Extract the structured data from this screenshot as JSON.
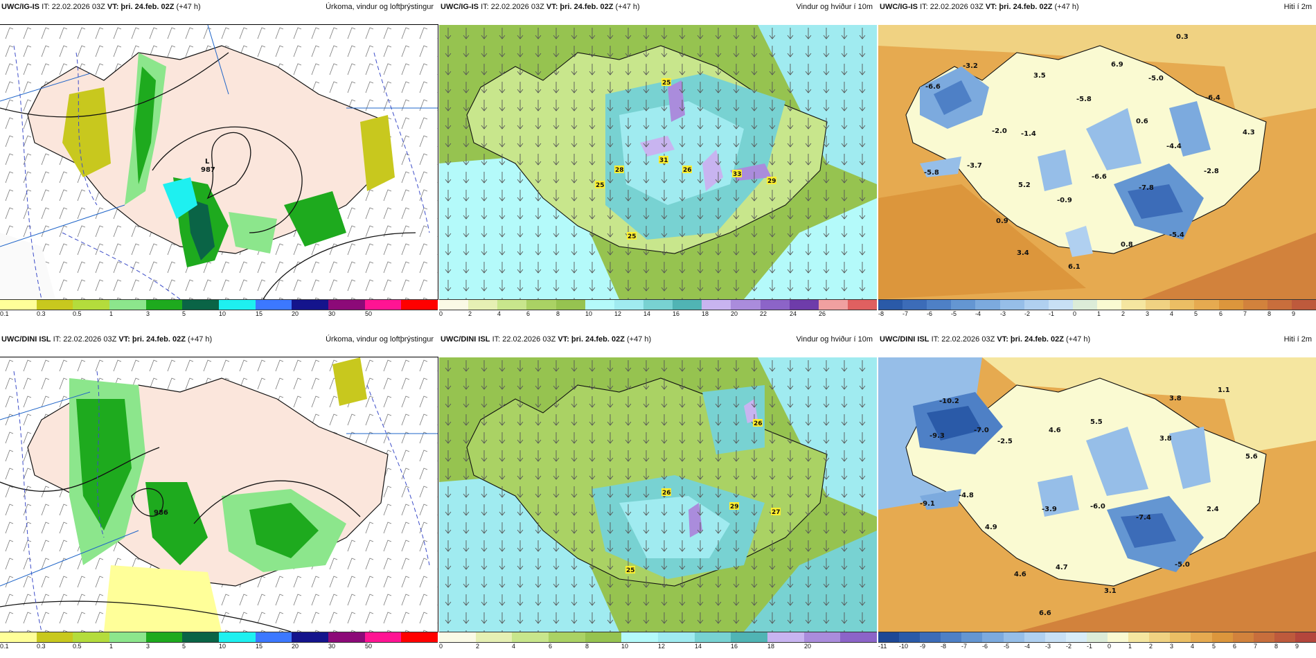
{
  "panels": {
    "p1": {
      "model": "UWC/IG-IS",
      "it": "IT: 22.02.2026 03Z",
      "vt": "VT: þri. 24.feb. 02Z",
      "lead": "(+47 h)",
      "title": "Úrkoma, vindur og loftþrýstingur",
      "low_letter": "L",
      "low_value": "987",
      "scale_ticks": [
        "0.1",
        "0.3",
        "0.5",
        "1",
        "3",
        "5",
        "10",
        "15",
        "20",
        "30",
        "50"
      ],
      "scale_colors": [
        "#ffff99",
        "#c8c81e",
        "#b4dc3c",
        "#8ce68c",
        "#1eaa1e",
        "#0a6446",
        "#1ef0f0",
        "#3c78ff",
        "#14148c",
        "#8c0a78",
        "#ff1493",
        "#ff0000"
      ]
    },
    "p2": {
      "model": "UWC/IG-IS",
      "it": "IT: 22.02.2026 03Z",
      "vt": "VT: þri. 24.feb. 02Z",
      "lead": "(+47 h)",
      "title": "Vindur og hviður í 10m",
      "gusts": [
        "25",
        "28",
        "31",
        "26",
        "33",
        "29",
        "25",
        "25"
      ],
      "scale_ticks": [
        "0",
        "2",
        "4",
        "6",
        "8",
        "10",
        "12",
        "14",
        "16",
        "18",
        "20",
        "22",
        "24",
        "26"
      ],
      "scale_colors": [
        "#fafae6",
        "#e6f0b4",
        "#c8e68c",
        "#aad264",
        "#96c350",
        "#b4fafa",
        "#a0ebf0",
        "#78d2d2",
        "#50b4b4",
        "#c8b4f0",
        "#aa8cdc",
        "#8c64c8",
        "#6e3caa",
        "#f0a0a0",
        "#e06060"
      ]
    },
    "p3": {
      "model": "UWC/IG-IS",
      "it": "IT: 22.02.2026 03Z",
      "vt": "VT: þri. 24.feb. 02Z",
      "lead": "(+47 h)",
      "title": "Hiti í 2m",
      "temps": [
        "-3.2",
        "0.3",
        "-6.6",
        "3.5",
        "6.9",
        "-5.0",
        "-5.8",
        "-6.4",
        "-2.0",
        "-1.4",
        "0.6",
        "4.3",
        "-4.4",
        "-3.7",
        "-5.8",
        "5.2",
        "-6.6",
        "-2.8",
        "-0.9",
        "-7.8",
        "0.9",
        "0.8",
        "-5.4",
        "3.4",
        "6.1"
      ],
      "scale_ticks": [
        "-8",
        "-7",
        "-6",
        "-5",
        "-4",
        "-3",
        "-2",
        "-1",
        "0",
        "1",
        "2",
        "3",
        "4",
        "5",
        "6",
        "7",
        "8",
        "9"
      ],
      "scale_colors": [
        "#2a5aa8",
        "#3c6cb8",
        "#4e80c6",
        "#6496d2",
        "#7caade",
        "#96bee8",
        "#b0d0f0",
        "#c8e0f5",
        "#dcecd8",
        "#fafad2",
        "#f5e6a0",
        "#f0d282",
        "#ebbe64",
        "#e6aa50",
        "#dc963c",
        "#d2823c",
        "#c86e3c",
        "#be5a3c"
      ]
    },
    "p4": {
      "model": "UWC/DINI ISL",
      "it": "IT: 22.02.2026 03Z",
      "vt": "VT: þri. 24.feb. 02Z",
      "lead": "(+47 h)",
      "title": "Úrkoma, vindur og loftþrýstingur",
      "low_value": "986",
      "scale_ticks": [
        "0.1",
        "0.3",
        "0.5",
        "1",
        "3",
        "5",
        "10",
        "15",
        "20",
        "30",
        "50"
      ],
      "scale_colors": [
        "#ffff99",
        "#c8c81e",
        "#b4dc3c",
        "#8ce68c",
        "#1eaa1e",
        "#0a6446",
        "#1ef0f0",
        "#3c78ff",
        "#14148c",
        "#8c0a78",
        "#ff1493",
        "#ff0000"
      ]
    },
    "p5": {
      "model": "UWC/DINI ISL",
      "it": "IT: 22.02.2026 03Z",
      "vt": "VT: þri. 24.feb. 02Z",
      "lead": "(+47 h)",
      "title": "Vindur og hviður í 10m",
      "gusts": [
        "26",
        "26",
        "29",
        "27",
        "25"
      ],
      "scale_ticks": [
        "0",
        "2",
        "4",
        "6",
        "8",
        "10",
        "12",
        "14",
        "16",
        "18",
        "20"
      ],
      "scale_colors": [
        "#fafae6",
        "#e6f0b4",
        "#c8e68c",
        "#aad264",
        "#96c350",
        "#b4fafa",
        "#a0ebf0",
        "#78d2d2",
        "#50b4b4",
        "#c8b4f0",
        "#aa8cdc",
        "#8c64c8"
      ]
    },
    "p6": {
      "model": "UWC/DINI ISL",
      "it": "IT: 22.02.2026 03Z",
      "vt": "VT: þri. 24.feb. 02Z",
      "lead": "(+47 h)",
      "title": "Hiti í 2m",
      "temps": [
        "-10.2",
        "1.1",
        "3.8",
        "-9.3",
        "-7.0",
        "5.5",
        "-2.5",
        "4.6",
        "3.8",
        "5.6",
        "-4.8",
        "-3.9",
        "-6.0",
        "-9.1",
        "-7.4",
        "2.4",
        "4.9",
        "-5.0",
        "4.7",
        "4.6",
        "3.1",
        "6.6"
      ],
      "scale_ticks": [
        "-11",
        "-10",
        "-9",
        "-8",
        "-7",
        "-6",
        "-5",
        "-4",
        "-3",
        "-2",
        "-1",
        "0",
        "1",
        "2",
        "3",
        "4",
        "5",
        "6",
        "7",
        "8",
        "9"
      ],
      "scale_colors": [
        "#1e4896",
        "#2a5aa8",
        "#3c6cb8",
        "#4e80c6",
        "#6496d2",
        "#7caade",
        "#96bee8",
        "#b0d0f0",
        "#c8e0f5",
        "#d8ecf8",
        "#dcecd8",
        "#fafad2",
        "#f5e6a0",
        "#f0d282",
        "#ebbe64",
        "#e6aa50",
        "#dc963c",
        "#d2823c",
        "#c86e3c",
        "#be5a3c",
        "#b4463c"
      ]
    }
  }
}
